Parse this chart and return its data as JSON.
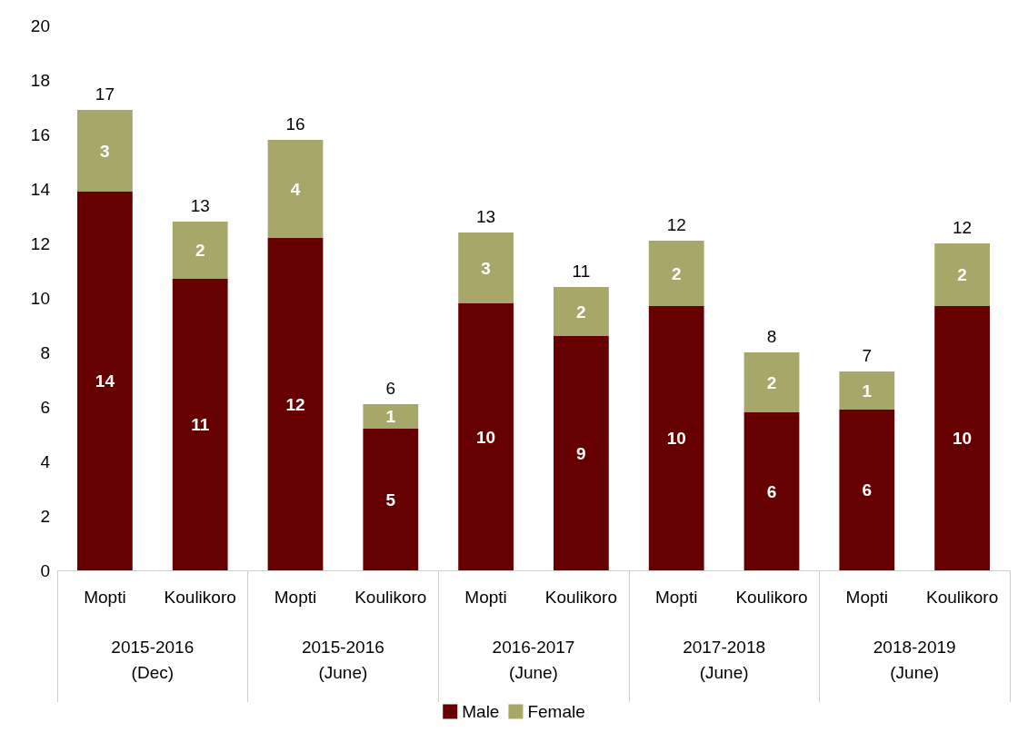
{
  "chart_data": {
    "type": "bar",
    "stacked": true,
    "categories": [
      "Mopti",
      "Koulikoro",
      "Mopti",
      "Koulikoro",
      "Mopti",
      "Koulikoro",
      "Mopti",
      "Koulikoro",
      "Mopti",
      "Koulikoro"
    ],
    "annotations": [
      "2015-2016\n(Dec)",
      "2015-2016\n(June)",
      "2016-2017\n(June)",
      "2017-2018\n(June)",
      "2018-2019\n(June)"
    ],
    "series": [
      {
        "name": "Male",
        "color": "#660000",
        "values": [
          13.9,
          10.7,
          12.2,
          5.2,
          9.8,
          8.6,
          9.7,
          5.8,
          5.9,
          9.7
        ],
        "value_labels": [
          "14",
          "11",
          "12",
          "5",
          "10",
          "9",
          "10",
          "6",
          "6",
          "10"
        ]
      },
      {
        "name": "Female",
        "color": "#a8a76a",
        "values": [
          3.0,
          2.1,
          3.6,
          0.9,
          2.6,
          1.8,
          2.4,
          2.2,
          1.4,
          2.3
        ],
        "value_labels": [
          "3",
          "2",
          "4",
          "1",
          "3",
          "2",
          "2",
          "2",
          "1",
          "2"
        ]
      }
    ],
    "totals": [
      "17",
      "13",
      "16",
      "6",
      "13",
      "11",
      "12",
      "8",
      "7",
      "12"
    ],
    "ylim": [
      0,
      20
    ],
    "yticks": [
      0,
      2,
      4,
      6,
      8,
      10,
      12,
      14,
      16,
      18,
      20
    ],
    "grid": false,
    "legend": "bottom"
  }
}
